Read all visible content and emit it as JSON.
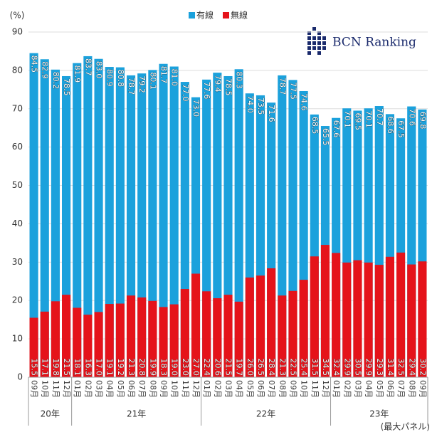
{
  "chart_data": {
    "type": "bar",
    "overlap": true,
    "legend": "top",
    "y_label": "(%)",
    "footnote": "(最大パネル)",
    "logo": "BCN Ranking",
    "categories": [
      "09月",
      "10月",
      "11月",
      "12月",
      "01月",
      "02月",
      "03月",
      "04月",
      "05月",
      "06月",
      "07月",
      "08月",
      "09月",
      "10月",
      "11月",
      "12月",
      "01月",
      "02月",
      "03月",
      "04月",
      "05月",
      "06月",
      "07月",
      "08月",
      "09月",
      "10月",
      "11月",
      "12月",
      "01月",
      "02月",
      "03月",
      "04月",
      "05月",
      "06月",
      "07月",
      "08月",
      "09月"
    ],
    "year_labels": [
      "20年",
      "21年",
      "22年",
      "23年"
    ],
    "ylim": [
      0,
      90
    ],
    "yticks": [
      0,
      10,
      20,
      30,
      40,
      50,
      60,
      70,
      80,
      90
    ],
    "grid": true,
    "series": [
      {
        "name": "有線",
        "color": "#1ba1dc",
        "values": [
          84.5,
          82.9,
          80.2,
          78.5,
          81.9,
          83.7,
          83.0,
          80.9,
          80.8,
          78.7,
          79.2,
          80.1,
          81.7,
          81.0,
          77.0,
          73.0,
          77.6,
          79.4,
          78.5,
          80.3,
          74.0,
          73.5,
          71.6,
          78.7,
          77.5,
          74.6,
          68.5,
          65.5,
          67.6,
          70.1,
          69.5,
          70.1,
          70.7,
          68.6,
          67.5,
          70.6,
          69.8
        ],
        "value_labels": [
          "84.5",
          "82.9",
          "80.2",
          "78.5",
          "81.9",
          "83.7",
          "83.0",
          "80.9",
          "80.8",
          "78.7",
          "79.2",
          "80.1",
          "81.7",
          "81.0",
          "77.0",
          "73.0",
          "77.6",
          "79.4",
          "78.5",
          "80.3",
          "74.0",
          "73.5",
          "71.6",
          "78.7",
          "77.5",
          "74.6",
          "68.5",
          "65.5",
          "67.6",
          "70.1",
          "69.5",
          "70.1",
          "70.7",
          "68.6",
          "67.5",
          "70.6",
          "69.8"
        ]
      },
      {
        "name": "無線",
        "color": "#e5131a",
        "values": [
          15.5,
          17.1,
          19.8,
          21.5,
          18.1,
          16.3,
          17.0,
          19.1,
          19.2,
          21.3,
          20.8,
          19.9,
          18.3,
          19.0,
          23.0,
          27.0,
          22.4,
          20.6,
          21.5,
          19.7,
          26.0,
          26.5,
          28.4,
          21.3,
          22.5,
          25.4,
          31.5,
          34.5,
          32.4,
          29.9,
          30.5,
          29.9,
          29.3,
          31.4,
          32.5,
          29.4,
          30.2
        ],
        "value_labels": [
          "15.5",
          "17.1",
          "19.8",
          "21.5",
          "18.1",
          "16.3",
          "17.0",
          "19.1",
          "19.2",
          "21.3",
          "20.8",
          "19.9",
          "18.3",
          "19.0",
          "23.0",
          "27.0",
          "22.4",
          "20.6",
          "21.5",
          "19.7",
          "26.0",
          "26.5",
          "28.4",
          "21.3",
          "22.5",
          "25.4",
          "31.5",
          "34.5",
          "32.4",
          "29.9",
          "30.5",
          "29.9",
          "29.3",
          "31.4",
          "32.5",
          "29.4",
          "30.2"
        ]
      }
    ]
  }
}
